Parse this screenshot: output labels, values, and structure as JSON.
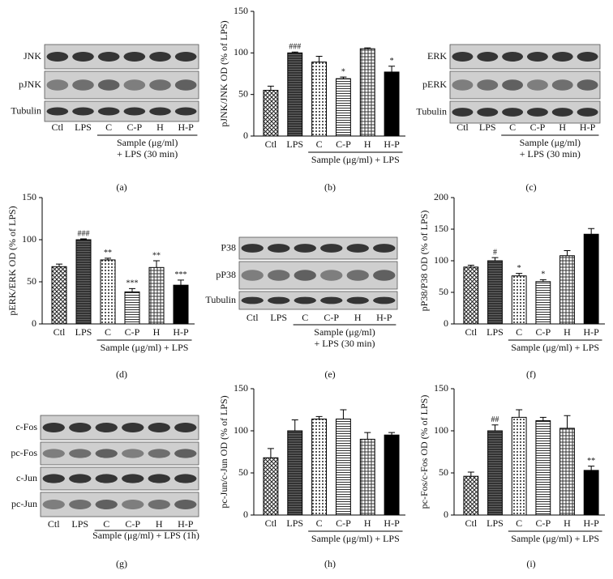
{
  "chart_data": [
    {
      "type": "bar",
      "panel": "(b)",
      "y_label": "pJNK/JNK OD (% of LPS)",
      "group_label": "Sample (μg/ml) + LPS",
      "categories": [
        "Ctl",
        "LPS",
        "C",
        "C-P",
        "H",
        "H-P"
      ],
      "values": [
        55,
        100,
        89,
        69,
        105,
        77
      ],
      "errors": [
        5,
        1,
        7,
        2,
        1,
        7
      ],
      "annotations": [
        null,
        "###",
        null,
        "*",
        null,
        "*"
      ],
      "ylim": [
        0,
        150
      ],
      "yticks": [
        0,
        50,
        100,
        150
      ]
    },
    {
      "type": "bar",
      "panel": "(d)",
      "y_label": "pERK/ERK OD (% of LPS)",
      "group_label": "Sample (μg/ml) + LPS",
      "categories": [
        "Ctl",
        "LPS",
        "C",
        "C-P",
        "H",
        "H-P"
      ],
      "values": [
        68,
        100,
        76,
        38,
        67,
        46
      ],
      "errors": [
        3,
        1,
        2,
        4,
        8,
        6
      ],
      "annotations": [
        null,
        "###",
        "**",
        "***",
        "**",
        "***"
      ],
      "ylim": [
        0,
        150
      ],
      "yticks": [
        0,
        50,
        100,
        150
      ]
    },
    {
      "type": "bar",
      "panel": "(f)",
      "y_label": "pP38/P38 OD (% of LPS)",
      "group_label": "Sample (μg/ml) + LPS",
      "categories": [
        "Ctl",
        "LPS",
        "C",
        "C-P",
        "H",
        "H-P"
      ],
      "values": [
        90,
        100,
        76,
        67,
        108,
        142
      ],
      "errors": [
        3,
        5,
        4,
        3,
        8,
        9
      ],
      "annotations": [
        null,
        "#",
        "*",
        "*",
        null,
        null
      ],
      "ylim": [
        0,
        200
      ],
      "yticks": [
        0,
        50,
        100,
        150,
        200
      ]
    },
    {
      "type": "bar",
      "panel": "(h)",
      "y_label": "pc-Jun/c-Jun OD (% of LPS)",
      "group_label": "Sample (μg/ml) + LPS",
      "categories": [
        "Ctl",
        "LPS",
        "C",
        "C-P",
        "H",
        "H-P"
      ],
      "values": [
        68,
        100,
        114,
        114,
        90,
        95
      ],
      "errors": [
        11,
        13,
        3,
        11,
        8,
        3
      ],
      "annotations": [
        null,
        null,
        null,
        null,
        null,
        null
      ],
      "ylim": [
        0,
        150
      ],
      "yticks": [
        0,
        50,
        100,
        150
      ]
    },
    {
      "type": "bar",
      "panel": "(i)",
      "y_label": "pc-Fos/c-Fos OD (% of LPS)",
      "group_label": "Sample (μg/ml) + LPS",
      "categories": [
        "Ctl",
        "LPS",
        "C",
        "C-P",
        "H",
        "H-P"
      ],
      "values": [
        46,
        100,
        116,
        112,
        103,
        53
      ],
      "errors": [
        5,
        7,
        9,
        4,
        15,
        5
      ],
      "annotations": [
        null,
        "##",
        null,
        null,
        null,
        "**"
      ],
      "ylim": [
        0,
        150
      ],
      "yticks": [
        0,
        50,
        100,
        150
      ]
    }
  ],
  "blots": [
    {
      "panel": "(a)",
      "rows": [
        "JNK",
        "pJNK",
        "Tubulin"
      ],
      "lanes": [
        "Ctl",
        "LPS",
        "C",
        "C-P",
        "H",
        "H-P"
      ],
      "sample_label": "Sample (μg/ml)",
      "treatment_label": "+ LPS (30 min)"
    },
    {
      "panel": "(c)",
      "rows": [
        "ERK",
        "pERK",
        "Tubulin"
      ],
      "lanes": [
        "Ctl",
        "LPS",
        "C",
        "C-P",
        "H",
        "H-P"
      ],
      "sample_label": "Sample (μg/ml)",
      "treatment_label": "+ LPS (30 min)"
    },
    {
      "panel": "(e)",
      "rows": [
        "P38",
        "pP38",
        "Tubulin"
      ],
      "lanes": [
        "Ctl",
        "LPS",
        "C",
        "C-P",
        "H",
        "H-P"
      ],
      "sample_label": "Sample (μg/ml)",
      "treatment_label": "+ LPS (30 min)"
    },
    {
      "panel": "(g)",
      "rows": [
        "c-Fos",
        "pc-Fos",
        "c-Jun",
        "pc-Jun"
      ],
      "lanes": [
        "Ctl",
        "LPS",
        "C",
        "C-P",
        "H",
        "H-P"
      ],
      "sample_label": "Sample (μg/ml) + LPS (1h)"
    }
  ]
}
